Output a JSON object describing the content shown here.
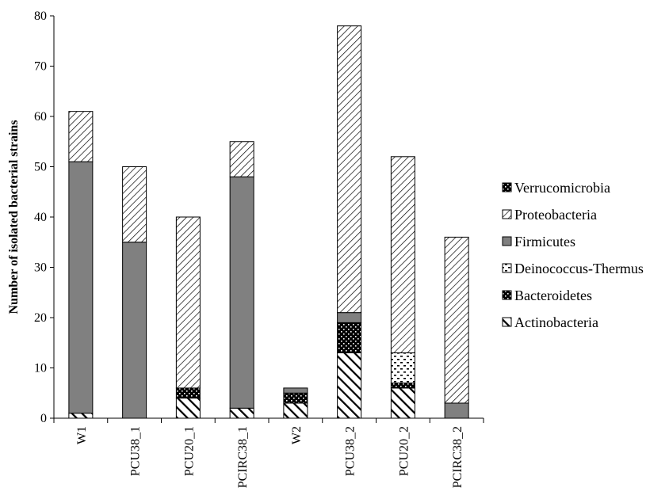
{
  "chart_data": {
    "type": "bar",
    "stacked": true,
    "ylabel": "Number of isolated bacterial strains",
    "xlabel": "",
    "ylim": [
      0,
      80
    ],
    "yticks": [
      0,
      10,
      20,
      30,
      40,
      50,
      60,
      70,
      80
    ],
    "categories": [
      "W1",
      "PCU38_1",
      "PCU20_1",
      "PCIRC38_1",
      "W2",
      "PCU38_2",
      "PCU20_2",
      "PCIRC38_2"
    ],
    "series": [
      {
        "name": "Actinobacteria",
        "pattern": "thick-diagonal",
        "values": [
          1,
          0,
          4,
          2,
          3,
          13,
          6,
          0
        ]
      },
      {
        "name": "Bacteroidetes",
        "pattern": "black-dots",
        "values": [
          0,
          0,
          2,
          0,
          2,
          6,
          1,
          0
        ]
      },
      {
        "name": "Deinococcus-Thermus",
        "pattern": "white-dashes",
        "values": [
          0,
          0,
          0,
          0,
          0,
          0,
          6,
          0
        ]
      },
      {
        "name": "Firmicutes",
        "pattern": "solid-gray",
        "values": [
          50,
          35,
          0,
          46,
          1,
          2,
          0,
          3
        ]
      },
      {
        "name": "Proteobacteria",
        "pattern": "thin-diagonal",
        "values": [
          10,
          15,
          34,
          7,
          0,
          57,
          39,
          33
        ]
      },
      {
        "name": "Verrucomicrobia",
        "pattern": "black-dots",
        "values": [
          0,
          0,
          0,
          0,
          0,
          0,
          0,
          0
        ]
      }
    ],
    "legend_order": [
      "Verrucomicrobia",
      "Proteobacteria",
      "Firmicutes",
      "Deinococcus-Thermus",
      "Bacteroidetes",
      "Actinobacteria"
    ],
    "legend_position": "right",
    "colors": {
      "firmicutes": "#808080",
      "hatch": "#000000",
      "background": "#ffffff"
    }
  }
}
